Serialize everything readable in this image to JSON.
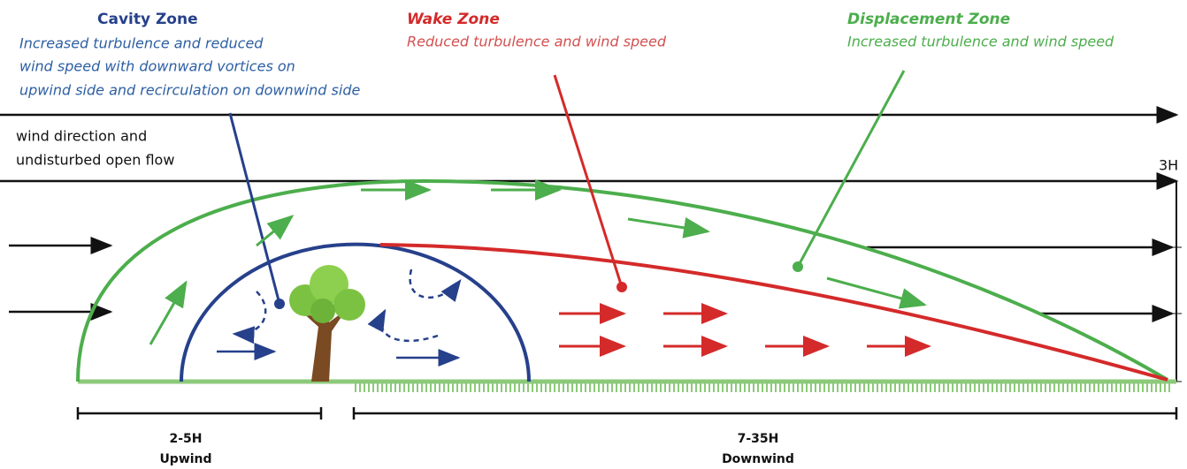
{
  "zones": [
    {
      "title": "Cavity Zone",
      "description": [
        "Increased turbulence and reduced",
        "wind speed with downward vortices on",
        "upwind side and recirculation on downwind side"
      ]
    },
    {
      "title": "Wake Zone",
      "description": [
        "Reduced turbulence and wind speed"
      ]
    },
    {
      "title": "Displacement Zone",
      "description": [
        "Increased turbulence and wind speed"
      ]
    }
  ],
  "flow_label": [
    "wind direction and",
    "undisturbed open flow"
  ],
  "height_label": "3H",
  "extents": [
    {
      "range": "2-5H",
      "label": "Upwind"
    },
    {
      "range": "7-35H",
      "label": "Downwind"
    }
  ]
}
